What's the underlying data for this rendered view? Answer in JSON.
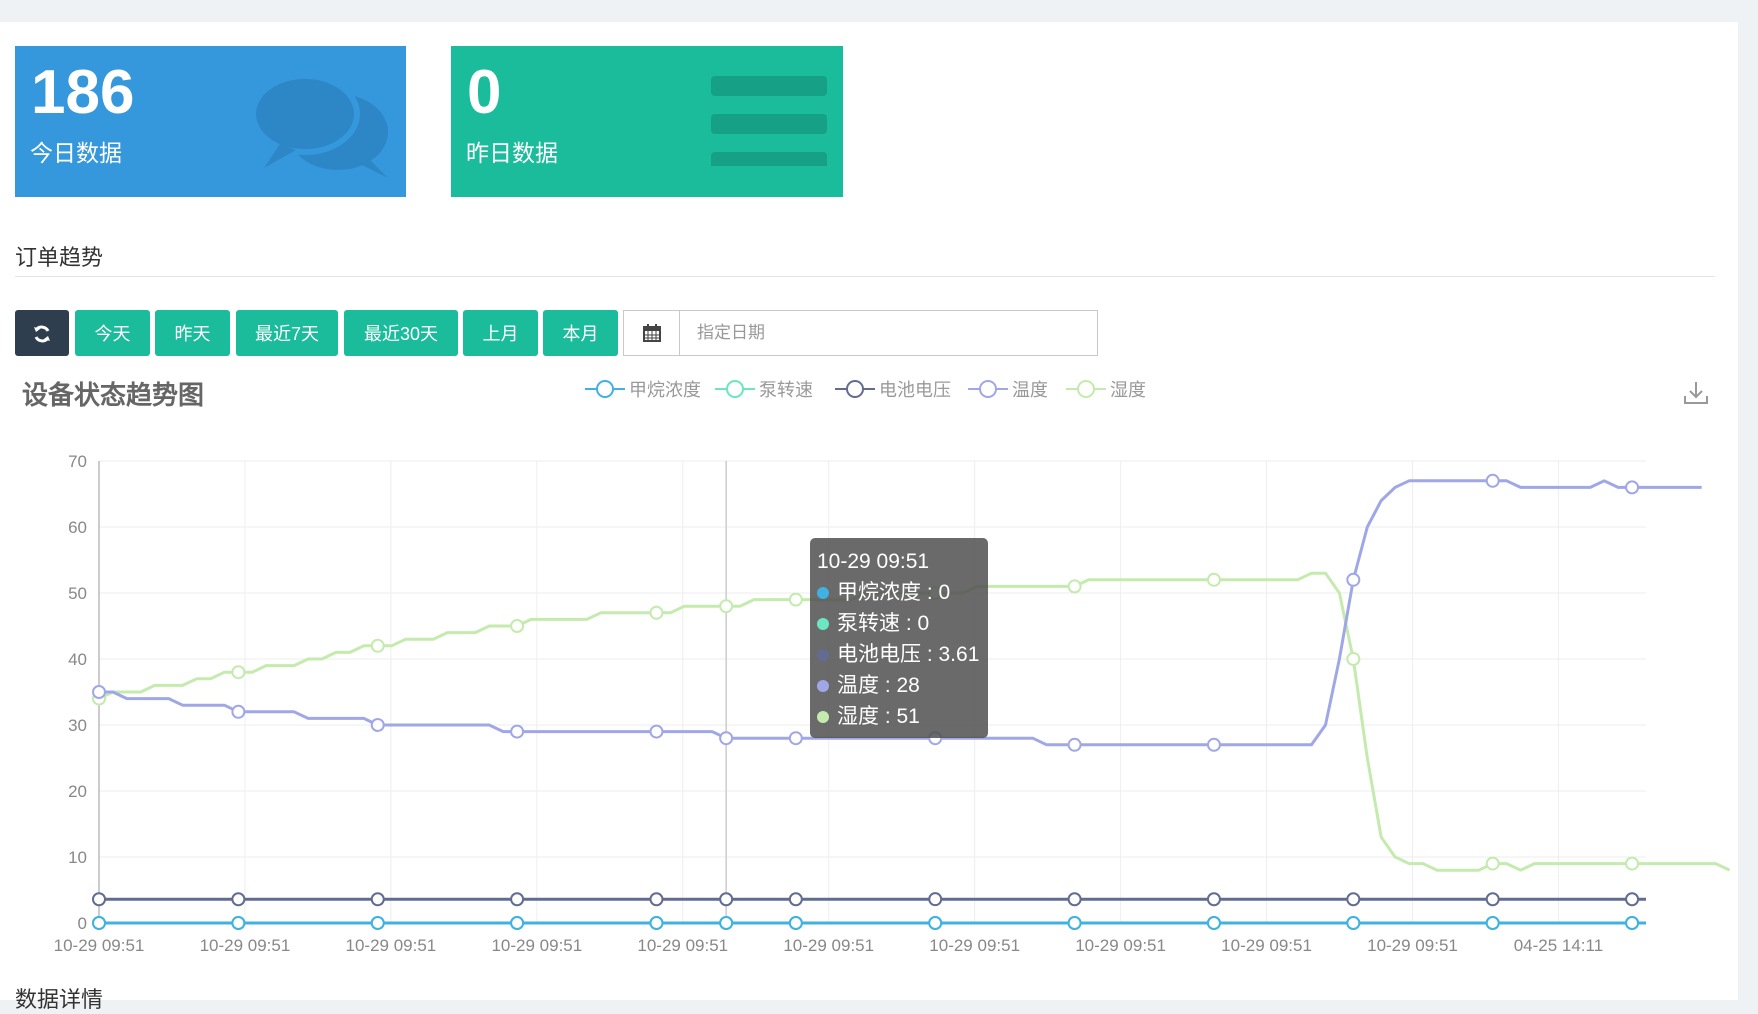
{
  "cards": [
    {
      "number": "186",
      "label": "今日数据",
      "icon": "comments-icon"
    },
    {
      "number": "0",
      "label": "昨日数据",
      "icon": "bars-icon"
    }
  ],
  "section_title": "订单趋势",
  "toolbar": {
    "refresh_icon": "refresh-icon",
    "buttons": [
      "今天",
      "昨天",
      "最近7天",
      "最近30天",
      "上月",
      "本月"
    ],
    "date_icon": "calendar-icon",
    "date_placeholder": "指定日期"
  },
  "chart_data": {
    "type": "line",
    "title": "设备状态趋势图",
    "legend": [
      "甲烷浓度",
      "泵转速",
      "电池电压",
      "温度",
      "湿度"
    ],
    "legend_position": "top-center",
    "colors": {
      "甲烷浓度": "#3fb1e3",
      "泵转速": "#6be6c1",
      "电池电压": "#626c91",
      "温度": "#a0a7e6",
      "湿度": "#c4ebad"
    },
    "grid": true,
    "ylim": [
      0,
      70
    ],
    "yticks": [
      0,
      10,
      20,
      30,
      40,
      50,
      60,
      70
    ],
    "x_tick_labels": [
      "10-29 09:51",
      "10-29 09:51",
      "10-29 09:51",
      "10-29 09:51",
      "10-29 09:51",
      "10-29 09:51",
      "10-29 09:51",
      "10-29 09:51",
      "10-29 09:51",
      "10-29 09:51",
      "04-25 14:11"
    ],
    "series": [
      {
        "name": "甲烷浓度",
        "values": [
          0,
          0,
          0,
          0,
          0,
          0,
          0,
          0,
          0,
          0,
          0,
          0,
          0,
          0,
          0,
          0,
          0,
          0,
          0,
          0,
          0,
          0,
          0,
          0,
          0,
          0,
          0,
          0,
          0,
          0,
          0,
          0,
          0,
          0,
          0,
          0,
          0,
          0,
          0,
          0,
          0,
          0,
          0,
          0,
          0,
          0,
          0,
          0,
          0,
          0,
          0,
          0,
          0,
          0,
          0,
          0,
          0,
          0,
          0,
          0,
          0,
          0,
          0,
          0,
          0,
          0,
          0,
          0,
          0,
          0,
          0,
          0,
          0,
          0,
          0,
          0,
          0,
          0,
          0,
          0,
          0,
          0,
          0,
          0,
          0,
          0,
          0,
          0,
          0,
          0,
          0,
          0,
          0,
          0,
          0,
          0,
          0,
          0,
          0,
          0,
          0,
          0,
          0,
          0,
          0,
          0,
          0,
          0,
          0,
          0,
          0,
          0
        ]
      },
      {
        "name": "泵转速",
        "values": [
          0,
          0,
          0,
          0,
          0,
          0,
          0,
          0,
          0,
          0,
          0,
          0,
          0,
          0,
          0,
          0,
          0,
          0,
          0,
          0,
          0,
          0,
          0,
          0,
          0,
          0,
          0,
          0,
          0,
          0,
          0,
          0,
          0,
          0,
          0,
          0,
          0,
          0,
          0,
          0,
          0,
          0,
          0,
          0,
          0,
          0,
          0,
          0,
          0,
          0,
          0,
          0,
          0,
          0,
          0,
          0,
          0,
          0,
          0,
          0,
          0,
          0,
          0,
          0,
          0,
          0,
          0,
          0,
          0,
          0,
          0,
          0,
          0,
          0,
          0,
          0,
          0,
          0,
          0,
          0,
          0,
          0,
          0,
          0,
          0,
          0,
          0,
          0,
          0,
          0,
          0,
          0,
          0,
          0,
          0,
          0,
          0,
          0,
          0,
          0,
          0,
          0,
          0,
          0,
          0,
          0,
          0,
          0,
          0,
          0,
          0,
          0
        ]
      },
      {
        "name": "电池电压",
        "values": [
          3.6,
          3.6,
          3.6,
          3.6,
          3.6,
          3.6,
          3.6,
          3.6,
          3.6,
          3.6,
          3.6,
          3.6,
          3.6,
          3.6,
          3.6,
          3.6,
          3.6,
          3.6,
          3.6,
          3.6,
          3.6,
          3.6,
          3.6,
          3.6,
          3.6,
          3.6,
          3.6,
          3.6,
          3.6,
          3.6,
          3.6,
          3.6,
          3.6,
          3.6,
          3.6,
          3.6,
          3.6,
          3.6,
          3.6,
          3.6,
          3.6,
          3.6,
          3.6,
          3.6,
          3.6,
          3.6,
          3.6,
          3.6,
          3.6,
          3.6,
          3.6,
          3.6,
          3.6,
          3.6,
          3.6,
          3.61,
          3.61,
          3.61,
          3.61,
          3.61,
          3.61,
          3.61,
          3.61,
          3.61,
          3.61,
          3.61,
          3.61,
          3.6,
          3.6,
          3.6,
          3.6,
          3.6,
          3.6,
          3.6,
          3.6,
          3.6,
          3.6,
          3.6,
          3.6,
          3.6,
          3.6,
          3.6,
          3.6,
          3.6,
          3.6,
          3.6,
          3.6,
          3.6,
          3.6,
          3.6,
          3.6,
          3.6,
          3.6,
          3.6,
          3.6,
          3.6,
          3.6,
          3.6,
          3.6,
          3.6,
          3.6,
          3.6,
          3.6,
          3.6,
          3.6,
          3.6,
          3.6,
          3.6,
          3.6,
          3.6,
          3.6,
          3.6
        ]
      },
      {
        "name": "温度",
        "values": [
          35,
          35,
          34,
          34,
          34,
          34,
          33,
          33,
          33,
          33,
          32,
          32,
          32,
          32,
          32,
          31,
          31,
          31,
          31,
          31,
          30,
          30,
          30,
          30,
          30,
          30,
          30,
          30,
          30,
          29,
          29,
          29,
          29,
          29,
          29,
          29,
          29,
          29,
          29,
          29,
          29,
          29,
          29,
          29,
          29,
          28,
          28,
          28,
          28,
          28,
          28,
          28,
          28,
          28,
          28,
          28,
          28,
          28,
          28,
          28,
          28,
          28,
          28,
          28,
          28,
          28,
          28,
          28,
          27,
          27,
          27,
          27,
          27,
          27,
          27,
          27,
          27,
          27,
          27,
          27,
          27,
          27,
          27,
          27,
          27,
          27,
          27,
          27,
          30,
          40,
          52,
          60,
          64,
          66,
          67,
          67,
          67,
          67,
          67,
          67,
          67,
          67,
          66,
          66,
          66,
          66,
          66,
          66,
          67,
          66,
          66,
          66,
          66,
          66,
          66,
          66
        ]
      },
      {
        "name": "湿度",
        "values": [
          34,
          35,
          35,
          35,
          36,
          36,
          36,
          37,
          37,
          38,
          38,
          38,
          39,
          39,
          39,
          40,
          40,
          41,
          41,
          42,
          42,
          42,
          43,
          43,
          43,
          44,
          44,
          44,
          45,
          45,
          45,
          46,
          46,
          46,
          46,
          46,
          47,
          47,
          47,
          47,
          47,
          47,
          48,
          48,
          48,
          48,
          48,
          49,
          49,
          49,
          49,
          49,
          49,
          49,
          49,
          50,
          50,
          50,
          50,
          50,
          50,
          50,
          50,
          51,
          51,
          51,
          51,
          51,
          51,
          51,
          51,
          52,
          52,
          52,
          52,
          52,
          52,
          52,
          52,
          52,
          52,
          52,
          52,
          52,
          52,
          52,
          52,
          53,
          53,
          50,
          40,
          25,
          13,
          10,
          9,
          9,
          8,
          8,
          8,
          8,
          9,
          9,
          8,
          9,
          9,
          9,
          9,
          9,
          9,
          9,
          9,
          9,
          9,
          9,
          9,
          9,
          9,
          8
        ]
      }
    ]
  },
  "tooltip": {
    "title": "10-29 09:51",
    "rows": [
      {
        "label": "甲烷浓度 : 0",
        "color": "#3fb1e3"
      },
      {
        "label": "泵转速 : 0",
        "color": "#6be6c1"
      },
      {
        "label": "电池电压 : 3.61",
        "color": "#626c91"
      },
      {
        "label": "温度 : 28",
        "color": "#a0a7e6"
      },
      {
        "label": "湿度 : 51",
        "color": "#c4ebad"
      }
    ]
  },
  "bottom_title": "数据详情",
  "download_icon": "download-icon"
}
